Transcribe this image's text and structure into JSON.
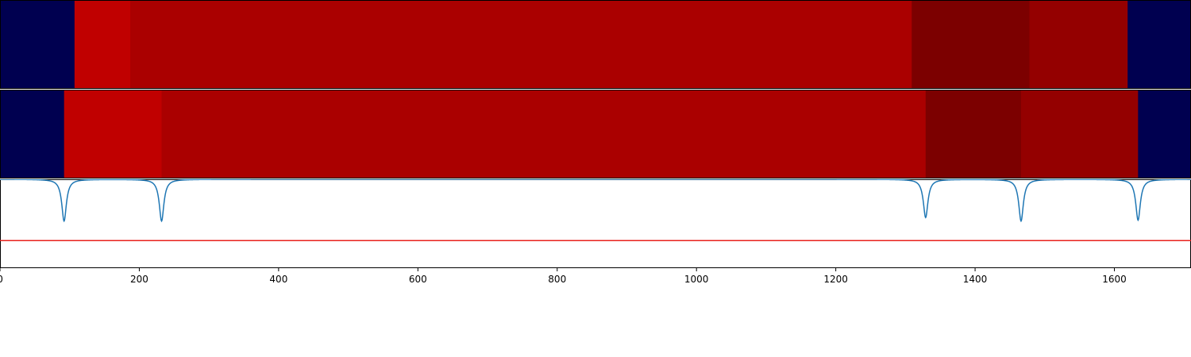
{
  "chart_data": [
    {
      "type": "heatmap",
      "row": "segmentation-top",
      "x_range": [
        0,
        1710
      ],
      "colors": {
        "background": "#000050",
        "level_1": "#c00000",
        "level_2": "#aa0000",
        "level_3": "#7c0000",
        "level_4": "#940000"
      },
      "segments": [
        {
          "start": 0,
          "end": 107,
          "level": "background"
        },
        {
          "start": 107,
          "end": 187,
          "level": "level_1"
        },
        {
          "start": 187,
          "end": 1309,
          "level": "level_2"
        },
        {
          "start": 1309,
          "end": 1478,
          "level": "level_3"
        },
        {
          "start": 1478,
          "end": 1619,
          "level": "level_4"
        },
        {
          "start": 1619,
          "end": 1710,
          "level": "background"
        }
      ]
    },
    {
      "type": "heatmap",
      "row": "segmentation-bottom",
      "x_range": [
        0,
        1710
      ],
      "colors": {
        "background": "#000050",
        "level_1": "#c00000",
        "level_2": "#aa0000",
        "level_3": "#7c0000",
        "level_4": "#940000"
      },
      "segments": [
        {
          "start": 0,
          "end": 92,
          "level": "background"
        },
        {
          "start": 92,
          "end": 232,
          "level": "level_1"
        },
        {
          "start": 232,
          "end": 1329,
          "level": "level_2"
        },
        {
          "start": 1329,
          "end": 1466,
          "level": "level_3"
        },
        {
          "start": 1466,
          "end": 1634,
          "level": "level_4"
        },
        {
          "start": 1634,
          "end": 1710,
          "level": "background"
        }
      ]
    },
    {
      "type": "line",
      "row": "boundary-curve",
      "x_range": [
        0,
        1710
      ],
      "y_range": [
        0,
        1
      ],
      "color": "#1f77b4",
      "baseline": 1.0,
      "dips": [
        {
          "x": 92,
          "depth": 0.47
        },
        {
          "x": 232,
          "depth": 0.47
        },
        {
          "x": 1329,
          "depth": 0.43
        },
        {
          "x": 1466,
          "depth": 0.47
        },
        {
          "x": 1634,
          "depth": 0.46
        }
      ],
      "threshold": {
        "value": 0.31,
        "color": "#e8221c"
      }
    }
  ],
  "x_axis": {
    "min": 0,
    "max": 1710,
    "ticks": [
      0,
      200,
      400,
      600,
      800,
      1000,
      1200,
      1400,
      1600
    ]
  }
}
